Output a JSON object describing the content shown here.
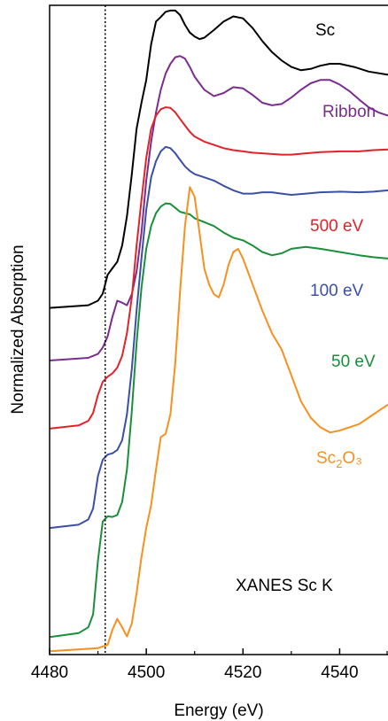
{
  "chart_data": {
    "type": "line",
    "title": "",
    "annotation": "XANES Sc K",
    "xlabel": "Energy (eV)",
    "ylabel": "Normalized Absorption",
    "xlim": [
      4480,
      4550
    ],
    "xticks": [
      4480,
      4500,
      4520,
      4540
    ],
    "yticks": "none",
    "grid": false,
    "legend": "inline labels at right end of each curve",
    "reference_line_x": 4491.5,
    "ylim": [
      0,
      10
    ],
    "series": [
      {
        "name": "Sc",
        "label_main": "Sc",
        "label_sub": "",
        "label_tail": "",
        "color": "#000000",
        "x": [
          4480,
          4488,
          4490,
          4491,
          4492,
          4493,
          4494,
          4495,
          4496,
          4497,
          4498,
          4499,
          4500,
          4501,
          4502,
          4503,
          4504,
          4505,
          4506,
          4507,
          4508,
          4509,
          4510,
          4511,
          4512,
          4514,
          4516,
          4518,
          4520,
          4522,
          4524,
          4526,
          4528,
          4530,
          4532,
          4534,
          4536,
          4538,
          4540,
          4543,
          4546,
          4550
        ],
        "y": [
          5.34,
          5.38,
          5.45,
          5.56,
          5.85,
          5.95,
          6.05,
          6.3,
          6.75,
          7.4,
          8.1,
          8.5,
          8.85,
          9.4,
          9.75,
          9.82,
          9.9,
          9.92,
          9.92,
          9.85,
          9.7,
          9.58,
          9.52,
          9.48,
          9.5,
          9.62,
          9.75,
          9.83,
          9.8,
          9.65,
          9.45,
          9.28,
          9.15,
          9.05,
          9.0,
          9.02,
          9.07,
          9.1,
          9.1,
          9.05,
          8.98,
          8.93
        ]
      },
      {
        "name": "Ribbon",
        "label_main": "Ribbon",
        "label_sub": "",
        "label_tail": "",
        "color": "#7b2d8e",
        "x": [
          4480,
          4488,
          4490,
          4491,
          4492,
          4493,
          4494,
          4495,
          4496,
          4497,
          4498,
          4499,
          4500,
          4501,
          4502,
          4503,
          4504,
          4505,
          4506,
          4507,
          4508,
          4509,
          4510,
          4512,
          4514,
          4516,
          4518,
          4520,
          4522,
          4524,
          4526,
          4528,
          4530,
          4532,
          4534,
          4536,
          4538,
          4540,
          4542,
          4544,
          4546,
          4548,
          4550
        ],
        "y": [
          4.53,
          4.57,
          4.63,
          4.73,
          4.9,
          5.2,
          5.45,
          5.42,
          5.38,
          5.55,
          5.9,
          6.5,
          7.3,
          7.9,
          8.35,
          8.7,
          8.95,
          9.1,
          9.2,
          9.22,
          9.18,
          9.05,
          8.9,
          8.7,
          8.6,
          8.65,
          8.74,
          8.72,
          8.62,
          8.5,
          8.46,
          8.48,
          8.58,
          8.7,
          8.8,
          8.85,
          8.85,
          8.78,
          8.68,
          8.55,
          8.43,
          8.35,
          8.3
        ]
      },
      {
        "name": "500 eV",
        "label_main": "500 eV",
        "label_sub": "",
        "label_tail": "",
        "color": "#e0232a",
        "x": [
          4480,
          4486,
          4488,
          4489,
          4490,
          4491,
          4492,
          4493,
          4494,
          4495,
          4496,
          4497,
          4498,
          4499,
          4500,
          4501,
          4502,
          4503,
          4504,
          4505,
          4506,
          4507,
          4508,
          4509,
          4510,
          4512,
          4514,
          4516,
          4518,
          4520,
          4522,
          4524,
          4526,
          4528,
          4530,
          4533,
          4536,
          4540,
          4544,
          4547,
          4550
        ],
        "y": [
          3.48,
          3.53,
          3.6,
          3.72,
          4.0,
          4.2,
          4.28,
          4.33,
          4.42,
          4.6,
          4.95,
          5.5,
          6.3,
          7.0,
          7.65,
          8.1,
          8.3,
          8.4,
          8.43,
          8.42,
          8.35,
          8.25,
          8.15,
          8.05,
          7.98,
          7.9,
          7.85,
          7.8,
          7.77,
          7.75,
          7.73,
          7.72,
          7.71,
          7.7,
          7.7,
          7.72,
          7.74,
          7.75,
          7.75,
          7.77,
          7.78
        ]
      },
      {
        "name": "100 eV",
        "label_main": "100 eV",
        "label_sub": "",
        "label_tail": "",
        "color": "#3a50a5",
        "x": [
          4480,
          4486,
          4488,
          4489,
          4490,
          4491,
          4492,
          4493,
          4494,
          4495,
          4496,
          4497,
          4498,
          4499,
          4500,
          4501,
          4502,
          4503,
          4504,
          4505,
          4506,
          4507,
          4508,
          4509,
          4510,
          4512,
          4514,
          4516,
          4518,
          4520,
          4522,
          4524,
          4526,
          4528,
          4530,
          4533,
          4536,
          4540,
          4544,
          4547,
          4550
        ],
        "y": [
          1.95,
          2.0,
          2.08,
          2.25,
          2.75,
          3.0,
          3.08,
          3.1,
          3.15,
          3.3,
          3.7,
          4.4,
          5.3,
          6.1,
          6.85,
          7.35,
          7.6,
          7.75,
          7.82,
          7.8,
          7.72,
          7.62,
          7.52,
          7.45,
          7.4,
          7.35,
          7.3,
          7.22,
          7.15,
          7.1,
          7.1,
          7.12,
          7.12,
          7.1,
          7.08,
          7.1,
          7.12,
          7.13,
          7.12,
          7.13,
          7.15
        ]
      },
      {
        "name": "50 eV",
        "label_main": "50 eV",
        "label_sub": "",
        "label_tail": "",
        "color": "#1a8f3a",
        "x": [
          4480,
          4486,
          4488,
          4489,
          4490,
          4491,
          4492,
          4493,
          4494,
          4495,
          4496,
          4497,
          4498,
          4499,
          4500,
          4501,
          4502,
          4503,
          4504,
          4505,
          4506,
          4507,
          4508,
          4509,
          4510,
          4512,
          4514,
          4516,
          4518,
          4520,
          4522,
          4524,
          4526,
          4528,
          4530,
          4533,
          4536,
          4540,
          4544,
          4547,
          4550
        ],
        "y": [
          0.27,
          0.33,
          0.42,
          0.62,
          1.45,
          2.05,
          2.13,
          2.12,
          2.15,
          2.35,
          2.85,
          3.75,
          4.8,
          5.65,
          6.25,
          6.6,
          6.8,
          6.9,
          6.95,
          6.94,
          6.88,
          6.82,
          6.8,
          6.78,
          6.72,
          6.66,
          6.6,
          6.5,
          6.42,
          6.38,
          6.3,
          6.2,
          6.15,
          6.18,
          6.25,
          6.28,
          6.25,
          6.2,
          6.15,
          6.12,
          6.1
        ]
      },
      {
        "name": "Sc2O3",
        "label_main": "Sc",
        "label_sub": "2",
        "label_tail": "O₃",
        "color": "#f7901e",
        "x": [
          4480,
          4490,
          4492,
          4493,
          4494,
          4495,
          4496,
          4497,
          4498,
          4499,
          4500,
          4501,
          4502,
          4503,
          4504,
          4505,
          4506,
          4507,
          4508,
          4509,
          4510,
          4511,
          4512,
          4513,
          4514,
          4515,
          4516,
          4517,
          4518,
          4519,
          4520,
          4522,
          4524,
          4526,
          4528,
          4530,
          4532,
          4534,
          4536,
          4538,
          4540,
          4542,
          4544,
          4546,
          4548,
          4550
        ],
        "y": [
          0.05,
          0.1,
          0.15,
          0.38,
          0.55,
          0.42,
          0.28,
          0.48,
          0.95,
          1.5,
          1.95,
          2.3,
          2.85,
          3.35,
          3.4,
          3.7,
          4.5,
          5.6,
          6.6,
          7.2,
          7.05,
          6.5,
          5.95,
          5.7,
          5.55,
          5.5,
          5.7,
          6.0,
          6.2,
          6.25,
          6.1,
          5.7,
          5.3,
          4.95,
          4.7,
          4.3,
          3.9,
          3.65,
          3.5,
          3.42,
          3.45,
          3.5,
          3.55,
          3.65,
          3.75,
          3.85
        ]
      }
    ]
  }
}
